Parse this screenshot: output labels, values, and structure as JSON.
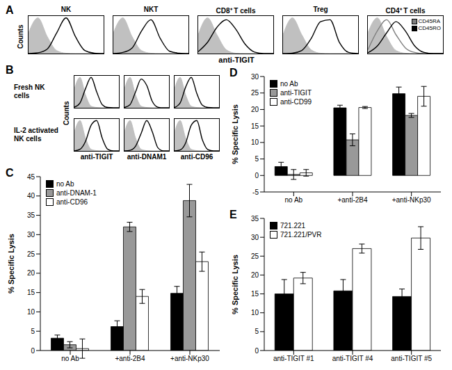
{
  "chart_data": [
    {
      "type": "area",
      "panel": "A",
      "x_label": "anti-TIGIT",
      "y_label": "Counts",
      "log": "x",
      "xlim": [
        1,
        10000
      ],
      "xticks": [
        1,
        10,
        100,
        1000,
        10000
      ],
      "ylim": [
        0,
        100
      ],
      "tick_labels": false,
      "x": [
        1,
        3.16,
        10,
        31.6,
        100,
        316,
        1000,
        3160,
        10000
      ],
      "subplots": [
        {
          "title": "NK",
          "series": [
            {
              "type": "area",
              "color": "#c0c0c0",
              "values": [
                55,
                95,
                45,
                8,
                1,
                0,
                0,
                0,
                0
              ]
            },
            {
              "type": "line",
              "color": "#000000",
              "values": [
                0,
                2,
                12,
                55,
                95,
                45,
                8,
                1,
                0
              ]
            }
          ]
        },
        {
          "title": "NKT",
          "series": [
            {
              "type": "area",
              "color": "#c0c0c0",
              "values": [
                55,
                95,
                45,
                8,
                1,
                0,
                0,
                0,
                0
              ]
            },
            {
              "type": "line",
              "color": "#000000",
              "values": [
                0,
                3,
                15,
                60,
                90,
                40,
                6,
                1,
                0
              ]
            }
          ]
        },
        {
          "title": "CD8⁺ T cells",
          "series": [
            {
              "type": "area",
              "color": "#c0c0c0",
              "values": [
                50,
                95,
                50,
                10,
                1,
                0,
                0,
                0,
                0
              ]
            },
            {
              "type": "line",
              "color": "#000000",
              "values": [
                5,
                30,
                70,
                90,
                65,
                25,
                4,
                0,
                0
              ]
            }
          ]
        },
        {
          "title": "Treg",
          "series": [
            {
              "type": "area",
              "color": "#c0c0c0",
              "values": [
                50,
                95,
                50,
                10,
                1,
                0,
                0,
                0,
                0
              ]
            },
            {
              "type": "line",
              "color": "#000000",
              "values": [
                0,
                1,
                8,
                40,
                85,
                90,
                30,
                3,
                0
              ]
            }
          ]
        },
        {
          "title": "CD4⁺ T cells",
          "series": [
            {
              "type": "area",
              "color": "#c0c0c0",
              "values": [
                55,
                95,
                45,
                8,
                1,
                0,
                0,
                0,
                0
              ]
            },
            {
              "type": "line",
              "name": "CD45RA",
              "color": "#7f7f7f",
              "values": [
                10,
                60,
                90,
                50,
                15,
                3,
                0,
                0,
                0
              ]
            },
            {
              "type": "line",
              "name": "CD45RO",
              "color": "#000000",
              "values": [
                2,
                20,
                55,
                85,
                60,
                20,
                3,
                0,
                0
              ]
            }
          ]
        }
      ]
    },
    {
      "type": "area",
      "panel": "B",
      "y_label": "Counts",
      "column_labels": [
        "anti-TIGIT",
        "anti-DNAM1",
        "anti-CD96"
      ],
      "log": "x",
      "xlim": [
        1,
        10000
      ],
      "xticks": [
        1,
        10,
        100,
        1000,
        10000
      ],
      "ylim": [
        0,
        100
      ],
      "tick_labels": false,
      "x": [
        1,
        3.16,
        10,
        31.6,
        100,
        316,
        1000,
        3160,
        10000
      ],
      "rows": [
        {
          "label": "Fresh NK cells",
          "subplots": [
            {
              "series": [
                {
                  "type": "area",
                  "color": "#c0c0c0",
                  "values": [
                    60,
                    95,
                    40,
                    5,
                    1,
                    0,
                    0,
                    0,
                    0
                  ]
                },
                {
                  "type": "line",
                  "color": "#000000",
                  "values": [
                    2,
                    15,
                    60,
                    95,
                    50,
                    10,
                    1,
                    0,
                    0
                  ]
                }
              ]
            },
            {
              "series": [
                {
                  "type": "area",
                  "color": "#c0c0c0",
                  "values": [
                    60,
                    95,
                    40,
                    5,
                    1,
                    0,
                    0,
                    0,
                    0
                  ]
                },
                {
                  "type": "line",
                  "color": "#000000",
                  "values": [
                    1,
                    10,
                    50,
                    90,
                    70,
                    20,
                    2,
                    0,
                    0
                  ]
                }
              ]
            },
            {
              "series": [
                {
                  "type": "area",
                  "color": "#c0c0c0",
                  "values": [
                    60,
                    95,
                    40,
                    5,
                    1,
                    0,
                    0,
                    0,
                    0
                  ]
                },
                {
                  "type": "line",
                  "color": "#000000",
                  "values": [
                    1,
                    15,
                    65,
                    95,
                    45,
                    8,
                    1,
                    0,
                    0
                  ]
                }
              ]
            }
          ]
        },
        {
          "label": "IL-2 activated NK cells",
          "subplots": [
            {
              "series": [
                {
                  "type": "area",
                  "color": "#c0c0c0",
                  "values": [
                    60,
                    95,
                    40,
                    5,
                    1,
                    0,
                    0,
                    0,
                    0
                  ]
                },
                {
                  "type": "line",
                  "color": "#000000",
                  "values": [
                    0,
                    5,
                    30,
                    80,
                    95,
                    40,
                    5,
                    0,
                    0
                  ]
                }
              ]
            },
            {
              "series": [
                {
                  "type": "area",
                  "color": "#c0c0c0",
                  "values": [
                    60,
                    95,
                    40,
                    5,
                    1,
                    0,
                    0,
                    0,
                    0
                  ]
                },
                {
                  "type": "line",
                  "color": "#000000",
                  "values": [
                    0,
                    2,
                    15,
                    55,
                    95,
                    60,
                    10,
                    0,
                    0
                  ]
                }
              ]
            },
            {
              "series": [
                {
                  "type": "area",
                  "color": "#c0c0c0",
                  "values": [
                    60,
                    95,
                    40,
                    5,
                    1,
                    0,
                    0,
                    0,
                    0
                  ]
                },
                {
                  "type": "line",
                  "color": "#000000",
                  "values": [
                    0,
                    3,
                    25,
                    80,
                    95,
                    35,
                    4,
                    0,
                    0
                  ]
                }
              ]
            }
          ]
        }
      ]
    },
    {
      "type": "bar",
      "panel": "C",
      "y_label": "% Specific Lysis",
      "categories": [
        "no Ab",
        "+anti-2B4",
        "+anti-NKp30"
      ],
      "ylim": [
        0,
        45
      ],
      "yticks": [
        0,
        5,
        10,
        15,
        20,
        25,
        30,
        35,
        40,
        45
      ],
      "legend": "top-left",
      "series": [
        {
          "name": "no Ab",
          "color": "#000000",
          "values": [
            3.2,
            6.2,
            14.8
          ],
          "errors": [
            0.8,
            1.5,
            1.8
          ]
        },
        {
          "name": "anti-DNAM-1",
          "color": "#999999",
          "values": [
            1.5,
            32,
            38.8
          ],
          "errors": [
            0.8,
            1.2,
            4.2
          ]
        },
        {
          "name": "anti-CD96",
          "color": "#ffffff",
          "values": [
            0.5,
            14,
            23
          ],
          "errors": [
            2.5,
            1.8,
            2.5
          ]
        }
      ]
    },
    {
      "type": "bar",
      "panel": "D",
      "y_label": "% Specific Lysis",
      "categories": [
        "no Ab",
        "+anti-2B4",
        "+anti-NKp30"
      ],
      "ylim": [
        -5,
        30
      ],
      "yticks": [
        -5,
        0,
        5,
        10,
        15,
        20,
        25,
        30
      ],
      "legend": "top-left",
      "series": [
        {
          "name": "no Ab",
          "color": "#000000",
          "values": [
            2.7,
            20.5,
            24.8
          ],
          "errors": [
            1.3,
            0.8,
            2.0
          ]
        },
        {
          "name": "anti-TIGIT",
          "color": "#999999",
          "values": [
            0.3,
            10.8,
            18.2
          ],
          "errors": [
            1.5,
            1.8,
            0.6
          ]
        },
        {
          "name": "anti-CD99",
          "color": "#ffffff",
          "values": [
            0.8,
            20.6,
            24
          ],
          "errors": [
            1.0,
            0.3,
            3.0
          ]
        }
      ]
    },
    {
      "type": "bar",
      "panel": "E",
      "y_label": "% Specific Lysis",
      "categories": [
        "anti-TIGIT #1",
        "anti-TIGIT #4",
        "anti-TIGIT #5"
      ],
      "ylim": [
        0,
        35
      ],
      "yticks": [
        0,
        5,
        10,
        15,
        20,
        25,
        30,
        35
      ],
      "legend": "top-left",
      "series": [
        {
          "name": "721.221",
          "color": "#000000",
          "values": [
            15,
            15.8,
            14.3
          ],
          "errors": [
            3.8,
            3.0,
            2.0
          ]
        },
        {
          "name": "721.221/PVR",
          "color": "#ffffff",
          "values": [
            19.2,
            27,
            29.8
          ],
          "errors": [
            1.5,
            1.2,
            3.0
          ]
        }
      ]
    }
  ]
}
